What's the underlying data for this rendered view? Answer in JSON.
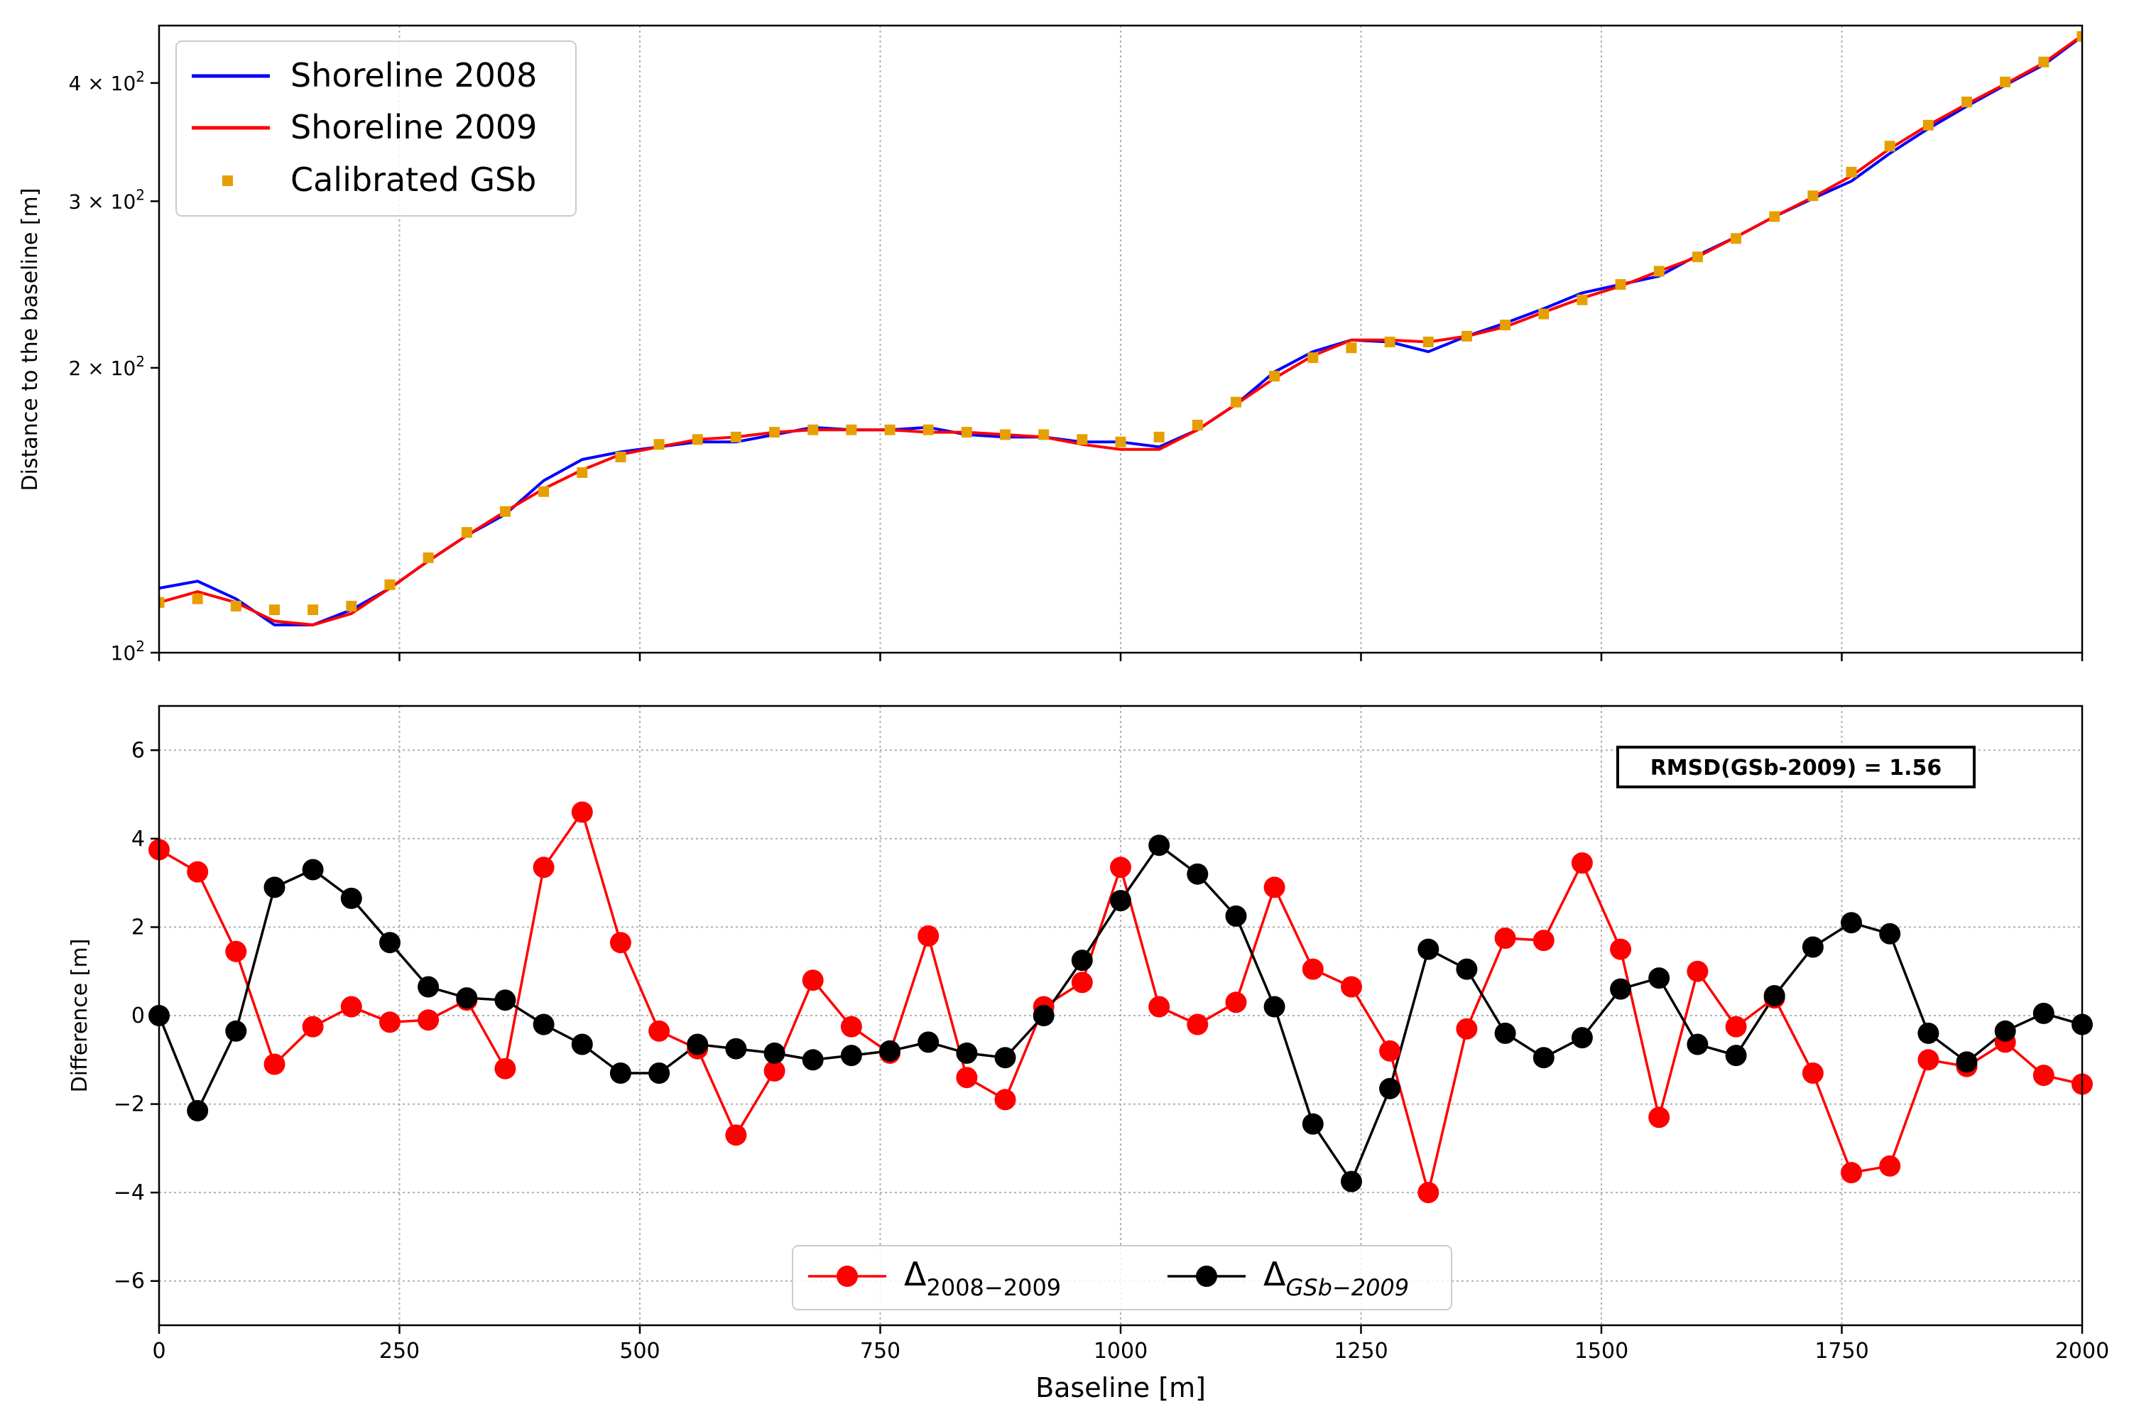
{
  "chart_data": [
    {
      "type": "line",
      "yscale": "log",
      "xlabel": "",
      "ylabel": "Distance to the baseline [m]",
      "xlim": [
        0,
        2000
      ],
      "ylim": [
        100,
        460
      ],
      "x_ticks": [
        0,
        250,
        500,
        750,
        1000,
        1250,
        1500,
        1750,
        2000
      ],
      "y_ticks": [
        {
          "value": 100,
          "mantissa": "",
          "exp": "2"
        },
        {
          "value": 200,
          "mantissa": "2",
          "exp": "2"
        },
        {
          "value": 300,
          "mantissa": "3",
          "exp": "2"
        },
        {
          "value": 400,
          "mantissa": "4",
          "exp": "2"
        }
      ],
      "grid": true,
      "legend_position": "top-left",
      "colors": {
        "s2008": "#0000ff",
        "s2009": "#ff0000",
        "gsb": "#e69f00"
      },
      "x": [
        0,
        40,
        80,
        120,
        160,
        200,
        240,
        280,
        320,
        360,
        400,
        440,
        480,
        520,
        560,
        600,
        640,
        680,
        720,
        760,
        800,
        840,
        880,
        920,
        960,
        1000,
        1040,
        1080,
        1120,
        1160,
        1200,
        1240,
        1280,
        1320,
        1360,
        1400,
        1440,
        1480,
        1520,
        1560,
        1600,
        1640,
        1680,
        1720,
        1760,
        1800,
        1840,
        1880,
        1920,
        1960,
        2000
      ],
      "series": [
        {
          "name": "Shoreline 2008",
          "style": "line",
          "values": [
            117,
            119,
            114,
            107,
            107,
            111,
            117,
            125,
            133,
            140,
            152,
            160,
            163,
            165,
            167,
            167,
            170,
            173,
            172,
            172,
            173,
            170,
            169,
            169,
            167,
            167,
            165,
            172,
            183,
            198,
            208,
            214,
            213,
            208,
            216,
            223,
            231,
            240,
            245,
            250,
            263,
            275,
            289,
            302,
            315,
            337,
            358,
            378,
            398,
            418,
            448
          ]
        },
        {
          "name": "Shoreline 2009",
          "style": "line",
          "values": [
            113,
            116,
            113,
            108,
            107,
            110,
            117,
            125,
            133,
            141,
            149,
            156,
            162,
            165,
            168,
            169,
            171,
            172,
            172,
            172,
            171,
            171,
            170,
            169,
            166,
            164,
            164,
            172,
            183,
            195,
            206,
            214,
            214,
            213,
            216,
            221,
            229,
            237,
            244,
            253,
            262,
            275,
            289,
            303,
            319,
            341,
            361,
            380,
            399,
            420,
            449
          ]
        },
        {
          "name": "Calibrated GSb",
          "style": "markers",
          "values": [
            113,
            114,
            112,
            111,
            111,
            112,
            118,
            126,
            134,
            141,
            148,
            155,
            161,
            166,
            168,
            169,
            171,
            172,
            172,
            172,
            172,
            171,
            170,
            170,
            168,
            167,
            169,
            174,
            184,
            196,
            205,
            210,
            213,
            213,
            216,
            222,
            228,
            236,
            245,
            253,
            262,
            274,
            289,
            304,
            322,
            343,
            361,
            382,
            401,
            421,
            448
          ]
        }
      ]
    },
    {
      "type": "line",
      "xlabel": "Baseline [m]",
      "ylabel": "Difference [m]",
      "xlim": [
        0,
        2000
      ],
      "ylim": [
        -7,
        7
      ],
      "x_ticks": [
        0,
        250,
        500,
        750,
        1000,
        1250,
        1500,
        1750,
        2000
      ],
      "y_ticks": [
        -6,
        -4,
        -2,
        0,
        2,
        4,
        6
      ],
      "grid": true,
      "legend_position": "bottom-center",
      "annotation": "RMSD(GSb-2009) = 1.56",
      "colors": {
        "d2008": "#ff0000",
        "dgsb": "#000000"
      },
      "x": [
        0,
        40,
        80,
        120,
        160,
        200,
        240,
        280,
        320,
        360,
        400,
        440,
        480,
        520,
        560,
        600,
        640,
        680,
        720,
        760,
        800,
        840,
        880,
        920,
        960,
        1000,
        1040,
        1080,
        1120,
        1160,
        1200,
        1240,
        1280,
        1320,
        1360,
        1400,
        1440,
        1480,
        1520,
        1560,
        1600,
        1640,
        1680,
        1720,
        1760,
        1800,
        1840,
        1880,
        1920,
        1960,
        2000
      ],
      "series": [
        {
          "name": "Δ2008-2009",
          "label_main": "Δ",
          "label_sub": "2008−2009",
          "values": [
            3.75,
            3.25,
            1.45,
            -1.1,
            -0.25,
            0.2,
            -0.15,
            -0.1,
            0.35,
            -1.2,
            3.35,
            4.6,
            1.65,
            -0.35,
            -0.75,
            -2.7,
            -1.25,
            0.8,
            -0.25,
            -0.85,
            1.8,
            -1.4,
            -1.9,
            0.2,
            0.75,
            3.35,
            0.2,
            -0.2,
            0.3,
            2.9,
            1.05,
            0.65,
            -0.8,
            -4.0,
            -0.3,
            1.75,
            1.7,
            3.45,
            1.5,
            -2.3,
            1.0,
            -0.25,
            0.4,
            -1.3,
            -3.55,
            -3.4,
            -1.0,
            -1.15,
            -0.6,
            -1.35,
            -1.55
          ]
        },
        {
          "name": "ΔGSb-2009",
          "label_main": "Δ",
          "label_sub": "GSb−2009",
          "values": [
            0.0,
            -2.15,
            -0.35,
            2.9,
            3.3,
            2.65,
            1.65,
            0.65,
            0.4,
            0.35,
            -0.2,
            -0.65,
            -1.3,
            -1.3,
            -0.65,
            -0.75,
            -0.85,
            -1.0,
            -0.9,
            -0.8,
            -0.6,
            -0.85,
            -0.95,
            0.0,
            1.25,
            2.6,
            3.85,
            3.2,
            2.25,
            0.2,
            -2.45,
            -3.75,
            -1.65,
            1.5,
            1.05,
            -0.4,
            -0.95,
            -0.5,
            0.6,
            0.85,
            -0.65,
            -0.9,
            0.45,
            1.55,
            2.1,
            1.85,
            -0.4,
            -1.05,
            -0.35,
            0.05,
            -0.2
          ]
        }
      ]
    }
  ]
}
